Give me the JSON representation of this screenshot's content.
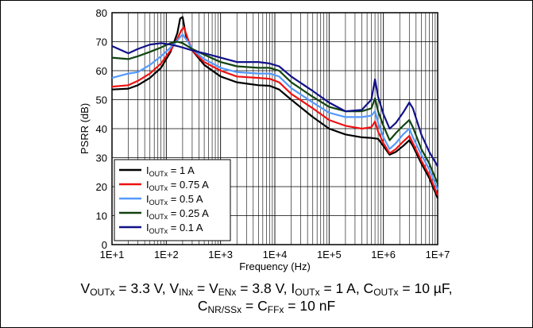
{
  "chart_data": {
    "type": "line",
    "title": "",
    "xlabel": "Frequency (Hz)",
    "ylabel": "PSRR (dB)",
    "xscale": "log",
    "xlim": [
      10,
      10000000
    ],
    "ylim": [
      0,
      80
    ],
    "x_tick_labels": [
      "1E+1",
      "1E+2",
      "1E+3",
      "1E+4",
      "1E+5",
      "1E+6",
      "1E+7"
    ],
    "y_tick_labels": [
      "0",
      "10",
      "20",
      "30",
      "40",
      "50",
      "60",
      "70",
      "80"
    ],
    "grid": true,
    "legend_position": "bottom-left",
    "series": [
      {
        "name": "I_OUTx = 1 A",
        "legend": {
          "main": "I",
          "sub": "OUTx",
          "rest": " = 1 A"
        },
        "color": "#000000",
        "points": [
          [
            10,
            53.5
          ],
          [
            20,
            53.8
          ],
          [
            30,
            55
          ],
          [
            50,
            57.5
          ],
          [
            80,
            61
          ],
          [
            120,
            66.5
          ],
          [
            160,
            73
          ],
          [
            180,
            78
          ],
          [
            200,
            78.5
          ],
          [
            230,
            72
          ],
          [
            300,
            67
          ],
          [
            500,
            62
          ],
          [
            1000,
            58
          ],
          [
            2000,
            56
          ],
          [
            5000,
            55
          ],
          [
            8000,
            54.8
          ],
          [
            12000,
            53.5
          ],
          [
            20000,
            50
          ],
          [
            50000,
            44
          ],
          [
            100000,
            40
          ],
          [
            200000,
            38
          ],
          [
            400000,
            37
          ],
          [
            600000,
            36.8
          ],
          [
            800000,
            36.5
          ],
          [
            1000000,
            34
          ],
          [
            1300000,
            31
          ],
          [
            1700000,
            32
          ],
          [
            2300000,
            34
          ],
          [
            3000000,
            36
          ],
          [
            3500000,
            34
          ],
          [
            5000000,
            28
          ],
          [
            7000000,
            23
          ],
          [
            10000000,
            16
          ]
        ]
      },
      {
        "name": "I_OUTx = 0.75 A",
        "legend": {
          "main": "I",
          "sub": "OUTx",
          "rest": " = 0.75 A"
        },
        "color": "#ee1111",
        "points": [
          [
            10,
            54.5
          ],
          [
            20,
            55
          ],
          [
            30,
            56.5
          ],
          [
            50,
            59
          ],
          [
            80,
            62.5
          ],
          [
            120,
            67
          ],
          [
            160,
            71
          ],
          [
            190,
            74
          ],
          [
            210,
            75
          ],
          [
            250,
            71
          ],
          [
            300,
            67
          ],
          [
            500,
            63
          ],
          [
            1000,
            60
          ],
          [
            2000,
            58
          ],
          [
            5000,
            57.5
          ],
          [
            8000,
            57.2
          ],
          [
            12000,
            56
          ],
          [
            20000,
            52
          ],
          [
            50000,
            47
          ],
          [
            100000,
            43
          ],
          [
            200000,
            41
          ],
          [
            400000,
            40
          ],
          [
            600000,
            40.5
          ],
          [
            700000,
            42.5
          ],
          [
            800000,
            39
          ],
          [
            1000000,
            35
          ],
          [
            1300000,
            31.5
          ],
          [
            1700000,
            33
          ],
          [
            2300000,
            35.5
          ],
          [
            3000000,
            37.5
          ],
          [
            3500000,
            35
          ],
          [
            5000000,
            29
          ],
          [
            7000000,
            24
          ],
          [
            10000000,
            17
          ]
        ]
      },
      {
        "name": "I_OUTx = 0.5 A",
        "legend": {
          "main": "I",
          "sub": "OUTx",
          "rest": " = 0.5 A"
        },
        "color": "#5599ff",
        "points": [
          [
            10,
            57.5
          ],
          [
            20,
            59
          ],
          [
            30,
            59.5
          ],
          [
            50,
            62
          ],
          [
            80,
            65
          ],
          [
            120,
            68
          ],
          [
            160,
            70.5
          ],
          [
            200,
            72.5
          ],
          [
            250,
            70
          ],
          [
            300,
            67.5
          ],
          [
            500,
            64
          ],
          [
            1000,
            61
          ],
          [
            2000,
            59.5
          ],
          [
            5000,
            59
          ],
          [
            8000,
            59
          ],
          [
            12000,
            58
          ],
          [
            20000,
            54
          ],
          [
            50000,
            49
          ],
          [
            100000,
            45.5
          ],
          [
            200000,
            44
          ],
          [
            400000,
            44
          ],
          [
            600000,
            44.5
          ],
          [
            700000,
            46
          ],
          [
            800000,
            42
          ],
          [
            1000000,
            37
          ],
          [
            1300000,
            33
          ],
          [
            1700000,
            35
          ],
          [
            2300000,
            38
          ],
          [
            3000000,
            40
          ],
          [
            3500000,
            37
          ],
          [
            5000000,
            31
          ],
          [
            7000000,
            26
          ],
          [
            10000000,
            19
          ]
        ]
      },
      {
        "name": "I_OUTx = 0.25 A",
        "legend": {
          "main": "I",
          "sub": "OUTx",
          "rest": " = 0.25 A"
        },
        "color": "#114411",
        "points": [
          [
            10,
            64.5
          ],
          [
            20,
            64
          ],
          [
            30,
            65
          ],
          [
            50,
            66.5
          ],
          [
            80,
            68
          ],
          [
            120,
            69.5
          ],
          [
            160,
            70
          ],
          [
            200,
            69.5
          ],
          [
            300,
            67.5
          ],
          [
            500,
            65.5
          ],
          [
            1000,
            63
          ],
          [
            2000,
            61.5
          ],
          [
            5000,
            61
          ],
          [
            8000,
            61
          ],
          [
            12000,
            60
          ],
          [
            20000,
            56
          ],
          [
            50000,
            51
          ],
          [
            100000,
            47.5
          ],
          [
            200000,
            46
          ],
          [
            400000,
            46
          ],
          [
            600000,
            47
          ],
          [
            700000,
            50.5
          ],
          [
            800000,
            46
          ],
          [
            1000000,
            41
          ],
          [
            1300000,
            36
          ],
          [
            1700000,
            38.5
          ],
          [
            2300000,
            41
          ],
          [
            3000000,
            43
          ],
          [
            3500000,
            40.5
          ],
          [
            5000000,
            33
          ],
          [
            7000000,
            28
          ],
          [
            10000000,
            21
          ]
        ]
      },
      {
        "name": "I_OUTx = 0.1 A",
        "legend": {
          "main": "I",
          "sub": "OUTx",
          "rest": " = 0.1 A"
        },
        "color": "#111188",
        "points": [
          [
            10,
            68.5
          ],
          [
            20,
            66
          ],
          [
            30,
            67.5
          ],
          [
            50,
            69
          ],
          [
            80,
            69.5
          ],
          [
            120,
            69
          ],
          [
            160,
            68.5
          ],
          [
            200,
            68
          ],
          [
            300,
            67
          ],
          [
            500,
            66
          ],
          [
            1000,
            64.5
          ],
          [
            2000,
            63
          ],
          [
            5000,
            63
          ],
          [
            8000,
            62.5
          ],
          [
            12000,
            61.5
          ],
          [
            20000,
            58
          ],
          [
            50000,
            53
          ],
          [
            100000,
            49
          ],
          [
            200000,
            46
          ],
          [
            400000,
            46.5
          ],
          [
            600000,
            50
          ],
          [
            700000,
            57
          ],
          [
            800000,
            51
          ],
          [
            1000000,
            45
          ],
          [
            1300000,
            40
          ],
          [
            1700000,
            42
          ],
          [
            2300000,
            45.5
          ],
          [
            3000000,
            49
          ],
          [
            3500000,
            47
          ],
          [
            5000000,
            38
          ],
          [
            7000000,
            32
          ],
          [
            10000000,
            27
          ]
        ]
      }
    ]
  },
  "caption": {
    "line1": [
      {
        "t": "V"
      },
      {
        "s": "OUTx"
      },
      {
        "t": " = 3.3 V, V"
      },
      {
        "s": "INx"
      },
      {
        "t": " = V"
      },
      {
        "s": "ENx"
      },
      {
        "t": " = 3.8 V, I"
      },
      {
        "s": "OUTx"
      },
      {
        "t": " = 1 A, C"
      },
      {
        "s": "OUTx"
      },
      {
        "t": " = 10 µF,"
      }
    ],
    "line2": [
      {
        "t": "C"
      },
      {
        "s": "NR/SSx"
      },
      {
        "t": " = C"
      },
      {
        "s": "FFx"
      },
      {
        "t": " = 10 nF"
      }
    ]
  }
}
